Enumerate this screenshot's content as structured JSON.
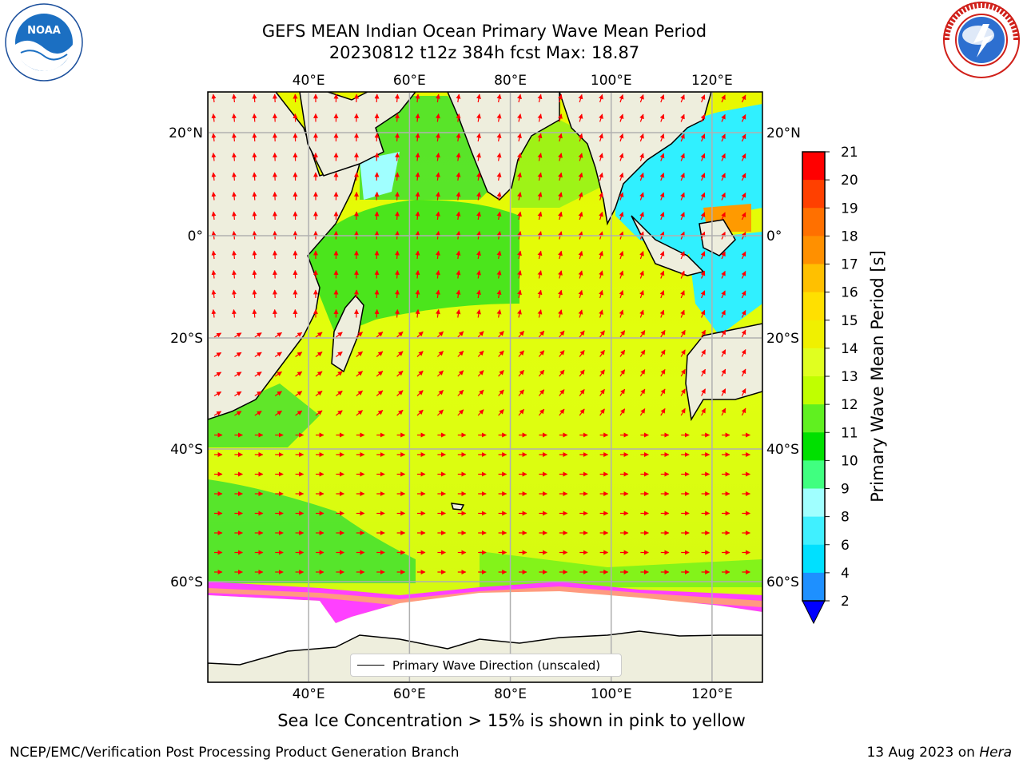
{
  "title_line1": "GEFS MEAN Indian Ocean Primary Wave Mean Period",
  "title_line2": "20230812 t12z 384h fcst   Max: 18.87",
  "subtitle": "Sea Ice Concentration > 15% is shown in pink to yellow",
  "footer_left": "NCEP/EMC/Verification Post Processing Product Generation Branch",
  "footer_right_date": "13 Aug 2023 on",
  "footer_right_host": "Hera",
  "logos": {
    "left": "noaa-logo",
    "right": "national-weather-service-logo"
  },
  "legend": {
    "label": "Primary Wave Direction (unscaled)"
  },
  "map": {
    "lon_range": [
      20,
      130
    ],
    "lat_range": [
      -75,
      26
    ],
    "lon_ticks": [
      "40°E",
      "60°E",
      "80°E",
      "100°E",
      "120°E"
    ],
    "lat_ticks": [
      "20°N",
      "0°",
      "20°S",
      "40°S",
      "60°S"
    ],
    "land_color": "#eeeedd",
    "arrow_color": "#ff0000",
    "grid_color": "#b0b0b0"
  },
  "colorbar": {
    "label": "Primary Wave Mean Period [s]",
    "levels": [
      "2",
      "4",
      "6",
      "8",
      "9",
      "10",
      "11",
      "12",
      "13",
      "14",
      "15",
      "16",
      "17",
      "18",
      "19",
      "20",
      "21"
    ],
    "colors": [
      "#1e90ff",
      "#00e0ff",
      "#40f0ff",
      "#a0ffff",
      "#40ff80",
      "#00e000",
      "#60f020",
      "#c0ff00",
      "#e0ff20",
      "#f0f000",
      "#ffe000",
      "#ffc000",
      "#ff9000",
      "#ff7000",
      "#ff4000",
      "#ff0000"
    ],
    "under_color": "#0000ff"
  }
}
